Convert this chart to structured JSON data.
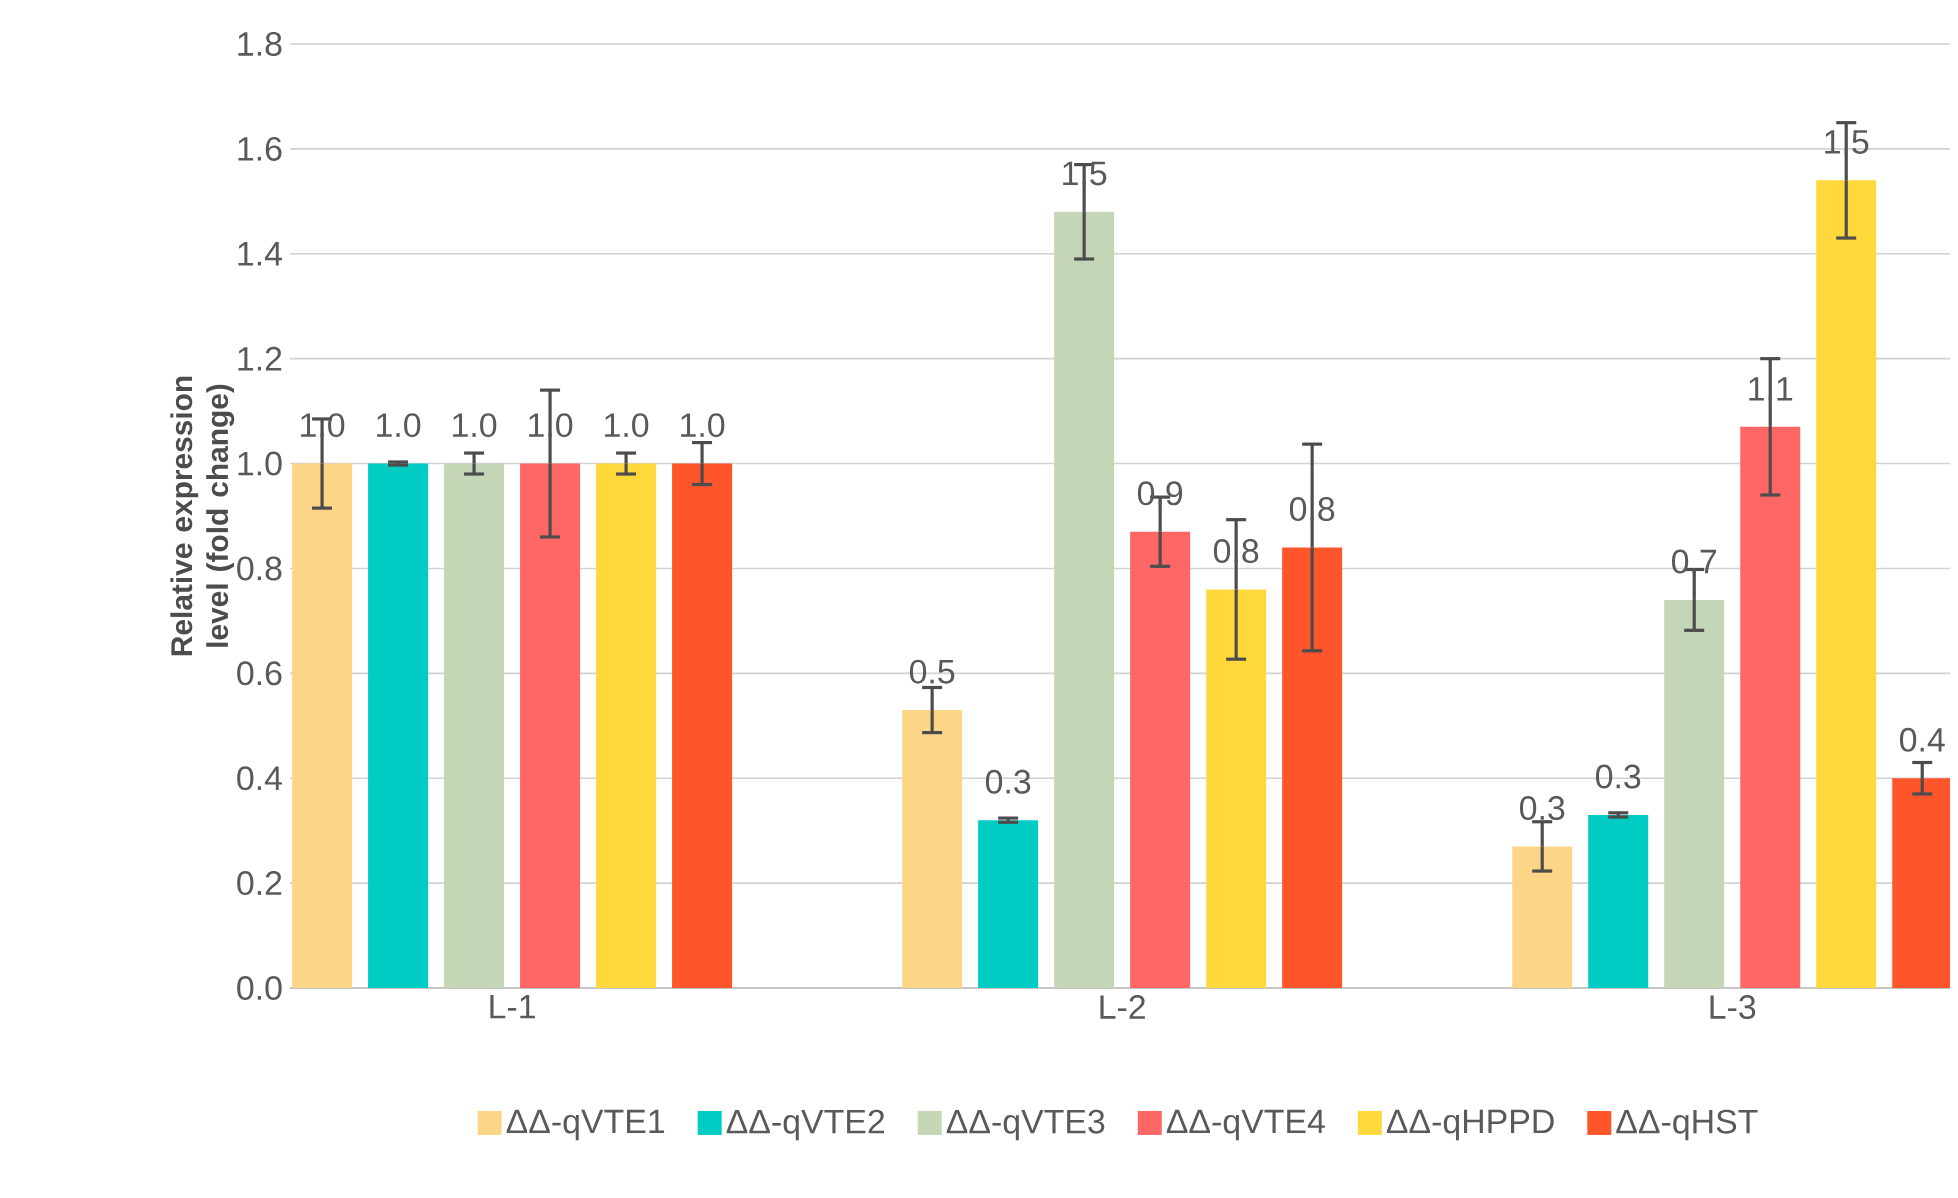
{
  "chart_data": {
    "type": "bar",
    "ylabel": "Relative expression level (fold change)",
    "categories": [
      "L-1",
      "L-2",
      "L-3"
    ],
    "series": [
      {
        "name": "ΔΔ-qVTE1",
        "color": "#fdd587",
        "values": [
          1.0,
          0.53,
          0.27
        ],
        "errors": [
          0.085,
          0.043,
          0.047
        ],
        "value_labels": [
          "1.0",
          "0.5",
          "0.3"
        ]
      },
      {
        "name": "ΔΔ-qVTE2",
        "color": "#00ccc3",
        "values": [
          1.0,
          0.32,
          0.33
        ],
        "errors": [
          0.003,
          0.004,
          0.004
        ],
        "value_labels": [
          "1.0",
          "0.3",
          "0.3"
        ]
      },
      {
        "name": "ΔΔ-qVTE3",
        "color": "#c5d6b6",
        "values": [
          1.0,
          1.48,
          0.74
        ],
        "errors": [
          0.02,
          0.09,
          0.058
        ],
        "value_labels": [
          "1.0",
          "1.5",
          "0.7"
        ]
      },
      {
        "name": "ΔΔ-qVTE4",
        "color": "#ff6666",
        "values": [
          1.0,
          0.87,
          1.07
        ],
        "errors": [
          0.14,
          0.066,
          0.13
        ],
        "value_labels": [
          "1.0",
          "0.9",
          "1.1"
        ]
      },
      {
        "name": "ΔΔ-qHPPD",
        "color": "#ffd93b",
        "values": [
          1.0,
          0.76,
          1.54
        ],
        "errors": [
          0.02,
          0.133,
          0.11
        ],
        "value_labels": [
          "1.0",
          "0.8",
          "1.5"
        ]
      },
      {
        "name": "ΔΔ-qHST",
        "color": "#ff552a",
        "values": [
          1.0,
          0.84,
          0.4
        ],
        "errors": [
          0.04,
          0.197,
          0.03
        ],
        "value_labels": [
          "1.0",
          "0.8",
          "0.4"
        ]
      }
    ],
    "ylim": [
      0,
      1.8
    ],
    "yticks": [
      {
        "value": 0,
        "label": "0.0"
      },
      {
        "value": 0.2,
        "label": "0.2"
      },
      {
        "value": 0.4,
        "label": "0.4"
      },
      {
        "value": 0.6,
        "label": "0.6"
      },
      {
        "value": 0.8,
        "label": "0.8"
      },
      {
        "value": 1,
        "label": "1.0"
      },
      {
        "value": 1.2,
        "label": "1.2"
      },
      {
        "value": 1.4,
        "label": "1.4"
      },
      {
        "value": 1.6,
        "label": "1.6"
      },
      {
        "value": 1.8,
        "label": "1.8"
      }
    ],
    "grid": "y",
    "legend": "bottom"
  }
}
